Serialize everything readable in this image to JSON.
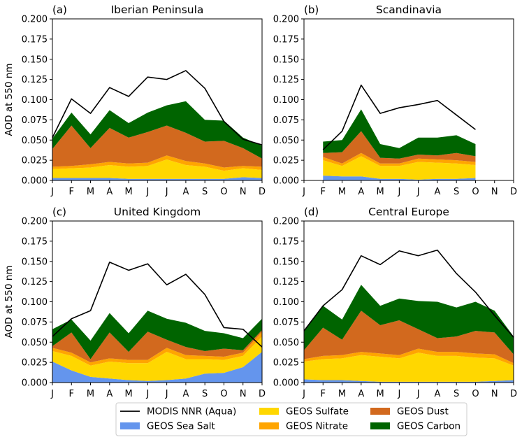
{
  "colors": {
    "modis": "#000000",
    "sea_salt": "#6495ED",
    "sulfate": "#FFD700",
    "nitrate": "#FFA500",
    "dust": "#D2691E",
    "carbon": "#006400"
  },
  "legend": [
    {
      "key": "modis",
      "label": "MODIS NNR (Aqua)",
      "kind": "line"
    },
    {
      "key": "sulfate",
      "label": "GEOS Sulfate",
      "kind": "patch"
    },
    {
      "key": "dust",
      "label": "GEOS Dust",
      "kind": "patch"
    },
    {
      "key": "sea_salt",
      "label": "GEOS Sea Salt",
      "kind": "patch"
    },
    {
      "key": "nitrate",
      "label": "GEOS Nitrate",
      "kind": "patch"
    },
    {
      "key": "carbon",
      "label": "GEOS Carbon",
      "kind": "patch"
    }
  ],
  "chart_data": [
    {
      "type": "area",
      "panel_label": "(a)",
      "title": "Iberian Peninsula",
      "ylabel": "AOD at 550 nm",
      "xlabel": "",
      "categories": [
        "J",
        "F",
        "M",
        "A",
        "M",
        "J",
        "J",
        "A",
        "S",
        "O",
        "N",
        "D"
      ],
      "ylim": [
        0,
        0.2
      ],
      "yticks": [
        "0.000",
        "0.025",
        "0.050",
        "0.075",
        "0.100",
        "0.125",
        "0.150",
        "0.175",
        "0.200"
      ],
      "series": [
        {
          "name": "GEOS Sea Salt",
          "key": "sea_salt",
          "values": [
            0.003,
            0.003,
            0.003,
            0.003,
            0.002,
            0.002,
            0.002,
            0.002,
            0.002,
            0.002,
            0.004,
            0.003
          ]
        },
        {
          "name": "GEOS Sulfate",
          "key": "sulfate",
          "values": [
            0.011,
            0.012,
            0.013,
            0.016,
            0.015,
            0.016,
            0.024,
            0.017,
            0.015,
            0.01,
            0.011,
            0.01
          ]
        },
        {
          "name": "GEOS Nitrate",
          "key": "nitrate",
          "values": [
            0.003,
            0.003,
            0.004,
            0.004,
            0.004,
            0.004,
            0.005,
            0.005,
            0.004,
            0.004,
            0.003,
            0.004
          ]
        },
        {
          "name": "GEOS Dust",
          "key": "dust",
          "values": [
            0.022,
            0.05,
            0.02,
            0.042,
            0.032,
            0.038,
            0.037,
            0.035,
            0.027,
            0.033,
            0.022,
            0.01
          ]
        },
        {
          "name": "GEOS Carbon",
          "key": "carbon",
          "values": [
            0.013,
            0.016,
            0.017,
            0.022,
            0.018,
            0.024,
            0.025,
            0.039,
            0.027,
            0.025,
            0.013,
            0.016
          ]
        }
      ],
      "line": {
        "name": "MODIS NNR (Aqua)",
        "key": "modis",
        "values": [
          0.053,
          0.101,
          0.083,
          0.115,
          0.104,
          0.128,
          0.125,
          0.136,
          0.114,
          0.073,
          0.051,
          0.044
        ]
      }
    },
    {
      "type": "area",
      "panel_label": "(b)",
      "title": "Scandinavia",
      "ylabel": "",
      "xlabel": "",
      "categories": [
        "J",
        "F",
        "M",
        "A",
        "M",
        "J",
        "J",
        "A",
        "S",
        "O",
        "N",
        "D"
      ],
      "ylim": [
        0,
        0.2
      ],
      "yticks": [
        "0.000",
        "0.025",
        "0.050",
        "0.075",
        "0.100",
        "0.125",
        "0.150",
        "0.175",
        "0.200"
      ],
      "series": [
        {
          "name": "GEOS Sea Salt",
          "key": "sea_salt",
          "values": [
            null,
            0.006,
            0.005,
            0.005,
            0.002,
            0.002,
            0.001,
            0.002,
            0.002,
            0.003,
            null,
            null
          ]
        },
        {
          "name": "GEOS Sulfate",
          "key": "sulfate",
          "values": [
            null,
            0.019,
            0.013,
            0.025,
            0.016,
            0.016,
            0.022,
            0.02,
            0.019,
            0.016,
            null,
            null
          ]
        },
        {
          "name": "GEOS Nitrate",
          "key": "nitrate",
          "values": [
            null,
            0.004,
            0.003,
            0.004,
            0.003,
            0.003,
            0.004,
            0.004,
            0.004,
            0.004,
            null,
            null
          ]
        },
        {
          "name": "GEOS Dust",
          "key": "dust",
          "values": [
            null,
            0.005,
            0.014,
            0.027,
            0.007,
            0.006,
            0.005,
            0.005,
            0.009,
            0.007,
            null,
            null
          ]
        },
        {
          "name": "GEOS Carbon",
          "key": "carbon",
          "values": [
            null,
            0.014,
            0.015,
            0.027,
            0.017,
            0.013,
            0.021,
            0.022,
            0.022,
            0.015,
            null,
            null
          ]
        }
      ],
      "line": {
        "name": "MODIS NNR (Aqua)",
        "key": "modis",
        "values": [
          null,
          0.038,
          0.061,
          0.118,
          0.083,
          0.09,
          0.094,
          0.099,
          0.081,
          0.063,
          null,
          null
        ]
      }
    },
    {
      "type": "area",
      "panel_label": "(c)",
      "title": "United Kingdom",
      "ylabel": "AOD at 550 nm",
      "xlabel": "",
      "categories": [
        "J",
        "F",
        "M",
        "A",
        "M",
        "J",
        "J",
        "A",
        "S",
        "O",
        "N",
        "D"
      ],
      "ylim": [
        0,
        0.2
      ],
      "yticks": [
        "0.000",
        "0.025",
        "0.050",
        "0.075",
        "0.100",
        "0.125",
        "0.150",
        "0.175",
        "0.200"
      ],
      "series": [
        {
          "name": "GEOS Sea Salt",
          "key": "sea_salt",
          "values": [
            0.026,
            0.015,
            0.007,
            0.005,
            0.003,
            0.002,
            0.003,
            0.005,
            0.011,
            0.012,
            0.019,
            0.038
          ]
        },
        {
          "name": "GEOS Sulfate",
          "key": "sulfate",
          "values": [
            0.013,
            0.018,
            0.014,
            0.021,
            0.021,
            0.022,
            0.035,
            0.024,
            0.018,
            0.016,
            0.014,
            0.019
          ]
        },
        {
          "name": "GEOS Nitrate",
          "key": "nitrate",
          "values": [
            0.004,
            0.004,
            0.004,
            0.004,
            0.004,
            0.004,
            0.005,
            0.005,
            0.004,
            0.004,
            0.004,
            0.006
          ]
        },
        {
          "name": "GEOS Dust",
          "key": "dust",
          "values": [
            0.002,
            0.025,
            0.004,
            0.032,
            0.01,
            0.035,
            0.01,
            0.01,
            0.006,
            0.01,
            0.003,
            0.002
          ]
        },
        {
          "name": "GEOS Carbon",
          "key": "carbon",
          "values": [
            0.021,
            0.016,
            0.023,
            0.024,
            0.023,
            0.026,
            0.026,
            0.03,
            0.025,
            0.019,
            0.015,
            0.014
          ]
        }
      ],
      "line": {
        "name": "MODIS NNR (Aqua)",
        "key": "modis",
        "values": [
          0.057,
          0.079,
          0.089,
          0.149,
          0.139,
          0.147,
          0.121,
          0.134,
          0.109,
          0.068,
          0.066,
          0.044
        ]
      }
    },
    {
      "type": "area",
      "panel_label": "(d)",
      "title": "Central Europe",
      "ylabel": "",
      "xlabel": "",
      "categories": [
        "J",
        "F",
        "M",
        "A",
        "M",
        "J",
        "J",
        "A",
        "S",
        "O",
        "N",
        "D"
      ],
      "ylim": [
        0,
        0.2
      ],
      "yticks": [
        "0.000",
        "0.025",
        "0.050",
        "0.075",
        "0.100",
        "0.125",
        "0.150",
        "0.175",
        "0.200"
      ],
      "series": [
        {
          "name": "GEOS Sea Salt",
          "key": "sea_salt",
          "values": [
            0.004,
            0.003,
            0.003,
            0.002,
            0.001,
            0.001,
            0.001,
            0.001,
            0.001,
            0.001,
            0.002,
            0.003
          ]
        },
        {
          "name": "GEOS Sulfate",
          "key": "sulfate",
          "values": [
            0.022,
            0.026,
            0.027,
            0.032,
            0.031,
            0.029,
            0.036,
            0.032,
            0.032,
            0.03,
            0.028,
            0.018
          ]
        },
        {
          "name": "GEOS Nitrate",
          "key": "nitrate",
          "values": [
            0.003,
            0.004,
            0.004,
            0.004,
            0.004,
            0.004,
            0.005,
            0.005,
            0.005,
            0.005,
            0.005,
            0.003
          ]
        },
        {
          "name": "GEOS Dust",
          "key": "dust",
          "values": [
            0.011,
            0.035,
            0.019,
            0.051,
            0.035,
            0.043,
            0.024,
            0.017,
            0.019,
            0.028,
            0.027,
            0.011
          ]
        },
        {
          "name": "GEOS Carbon",
          "key": "carbon",
          "values": [
            0.025,
            0.027,
            0.025,
            0.032,
            0.024,
            0.027,
            0.035,
            0.045,
            0.036,
            0.036,
            0.027,
            0.022
          ]
        }
      ],
      "line": {
        "name": "MODIS NNR (Aqua)",
        "key": "modis",
        "values": [
          0.064,
          0.095,
          0.115,
          0.157,
          0.146,
          0.163,
          0.157,
          0.164,
          0.135,
          0.112,
          0.083,
          0.056
        ]
      }
    }
  ]
}
